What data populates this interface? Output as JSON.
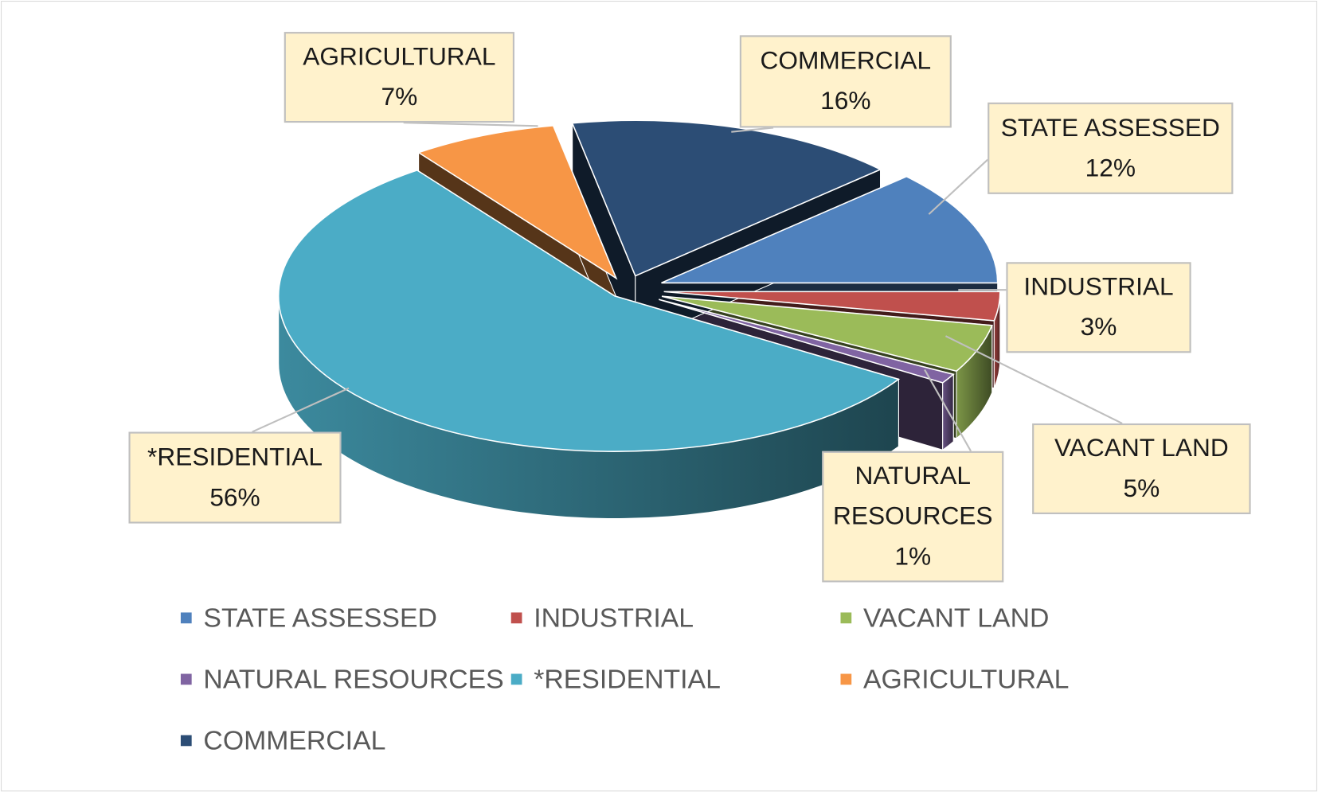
{
  "chart_data": {
    "type": "pie",
    "style": "3d-exploded",
    "title": "",
    "legend_position": "bottom",
    "slices": [
      {
        "name": "STATE ASSESSED",
        "value": 12,
        "label": "12%",
        "color": "#4F81BD"
      },
      {
        "name": "INDUSTRIAL",
        "value": 3,
        "label": "3%",
        "color": "#C0504D"
      },
      {
        "name": "VACANT LAND",
        "value": 5,
        "label": "5%",
        "color": "#9BBB59"
      },
      {
        "name": "NATURAL RESOURCES",
        "value": 1,
        "label": "1%",
        "color": "#8064A2"
      },
      {
        "name": "*RESIDENTIAL",
        "value": 56,
        "label": "56%",
        "color": "#4BACC6"
      },
      {
        "name": "AGRICULTURAL",
        "value": 7,
        "label": "7%",
        "color": "#F79646"
      },
      {
        "name": "COMMERCIAL",
        "value": 16,
        "label": "16%",
        "color": "#2C4D75"
      }
    ]
  }
}
